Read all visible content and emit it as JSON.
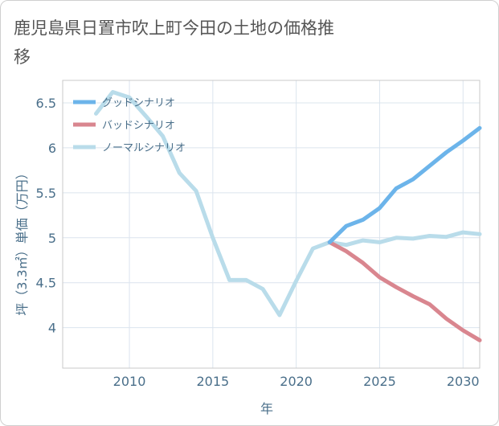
{
  "title": "鹿児島県日置市吹上町今田の土地の価格推移",
  "chart_data": {
    "type": "line",
    "xlabel": "年",
    "ylabel": "坪（3.3㎡）単価（万円）",
    "xlim": [
      2006,
      2031
    ],
    "ylim": [
      3.55,
      6.75
    ],
    "xticks": [
      2010,
      2015,
      2020,
      2025,
      2030
    ],
    "yticks": [
      4,
      4.5,
      5,
      5.5,
      6,
      6.5
    ],
    "ytick_labels": [
      "4",
      "4.5",
      "5",
      "5.5",
      "6",
      "6.5"
    ],
    "grid": true,
    "legend_position": "top-left",
    "series": [
      {
        "name": "グッドシナリオ",
        "color": "#6cb4ea",
        "x": [
          2022,
          2023,
          2024,
          2025,
          2026,
          2027,
          2028,
          2029,
          2030,
          2031
        ],
        "y": [
          4.95,
          5.13,
          5.2,
          5.33,
          5.55,
          5.65,
          5.8,
          5.95,
          6.08,
          6.22
        ]
      },
      {
        "name": "バッドシナリオ",
        "color": "#d9868f",
        "x": [
          2022,
          2023,
          2024,
          2025,
          2026,
          2027,
          2028,
          2029,
          2030,
          2031
        ],
        "y": [
          4.95,
          4.85,
          4.72,
          4.56,
          4.45,
          4.35,
          4.26,
          4.1,
          3.97,
          3.86
        ]
      },
      {
        "name": "ノーマルシナリオ",
        "color": "#b9dcea",
        "x": [
          2008,
          2009,
          2010,
          2011,
          2012,
          2013,
          2014,
          2015,
          2016,
          2017,
          2018,
          2019,
          2020,
          2021,
          2022,
          2023,
          2024,
          2025,
          2026,
          2027,
          2028,
          2029,
          2030,
          2031
        ],
        "y": [
          6.38,
          6.62,
          6.56,
          6.35,
          6.13,
          5.72,
          5.52,
          5.0,
          4.53,
          4.53,
          4.43,
          4.14,
          4.52,
          4.88,
          4.95,
          4.92,
          4.97,
          4.95,
          5.0,
          4.99,
          5.02,
          5.01,
          5.06,
          5.04
        ]
      }
    ]
  }
}
